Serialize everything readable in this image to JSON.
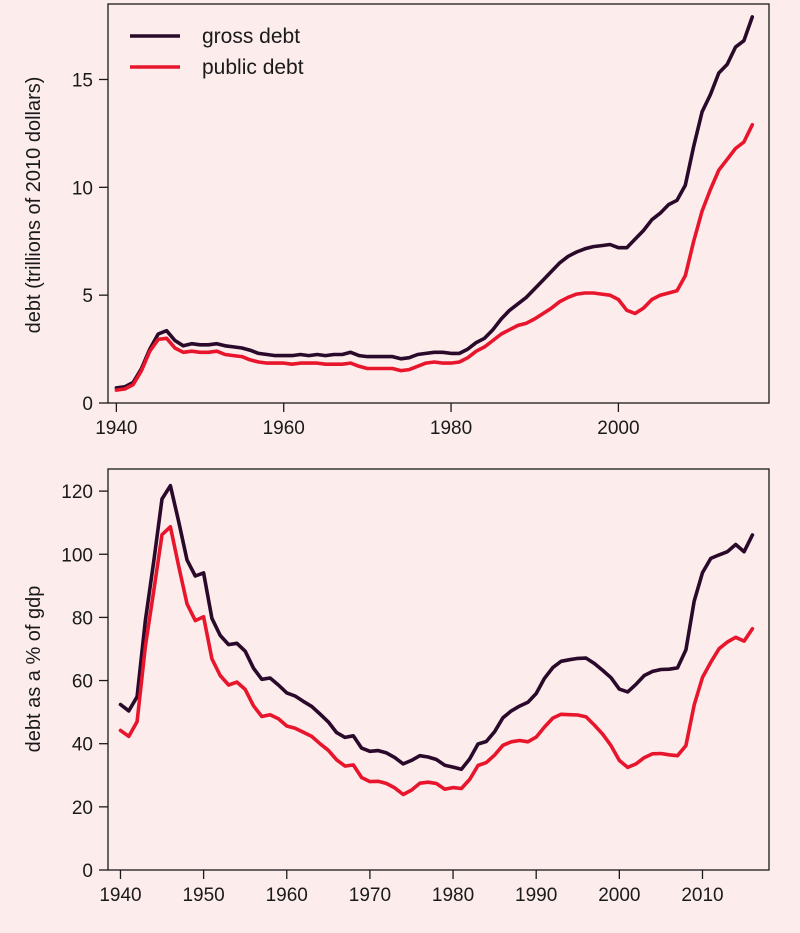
{
  "colors": {
    "background": "#fdecec",
    "gross": "#2a0a2a",
    "public": "#e8162c"
  },
  "chart_data": [
    {
      "type": "line",
      "title": "",
      "xlabel": "",
      "ylabel": "debt (trillions of 2010 dollars)",
      "xlim": [
        1939,
        2018
      ],
      "ylim": [
        0,
        18.5
      ],
      "xticks": [
        1940,
        1960,
        1980,
        2000
      ],
      "yticks": [
        0,
        5,
        10,
        15
      ],
      "legend": "top-left",
      "legend_entries": [
        "gross debt",
        "public debt"
      ],
      "series": [
        {
          "name": "gross debt",
          "x": [
            1940,
            1941,
            1942,
            1943,
            1944,
            1945,
            1946,
            1947,
            1948,
            1949,
            1950,
            1951,
            1952,
            1953,
            1954,
            1955,
            1956,
            1957,
            1958,
            1959,
            1960,
            1961,
            1962,
            1963,
            1964,
            1965,
            1966,
            1967,
            1968,
            1969,
            1970,
            1971,
            1972,
            1973,
            1974,
            1975,
            1976,
            1977,
            1978,
            1979,
            1980,
            1981,
            1982,
            1983,
            1984,
            1985,
            1986,
            1987,
            1988,
            1989,
            1990,
            1991,
            1992,
            1993,
            1994,
            1995,
            1996,
            1997,
            1998,
            1999,
            2000,
            2001,
            2002,
            2003,
            2004,
            2005,
            2006,
            2007,
            2008,
            2009,
            2010,
            2011,
            2012,
            2013,
            2014,
            2015,
            2016
          ],
          "values": [
            0.7,
            0.75,
            0.95,
            1.6,
            2.5,
            3.2,
            3.35,
            2.9,
            2.65,
            2.75,
            2.7,
            2.7,
            2.75,
            2.65,
            2.6,
            2.55,
            2.45,
            2.3,
            2.25,
            2.2,
            2.2,
            2.2,
            2.25,
            2.2,
            2.25,
            2.2,
            2.25,
            2.25,
            2.35,
            2.2,
            2.15,
            2.15,
            2.15,
            2.15,
            2.05,
            2.1,
            2.25,
            2.3,
            2.35,
            2.35,
            2.3,
            2.3,
            2.5,
            2.8,
            3.0,
            3.4,
            3.9,
            4.3,
            4.6,
            4.9,
            5.3,
            5.7,
            6.1,
            6.5,
            6.8,
            7.0,
            7.15,
            7.25,
            7.3,
            7.35,
            7.2,
            7.2,
            7.6,
            8.0,
            8.5,
            8.8,
            9.2,
            9.4,
            10.1,
            11.9,
            13.5,
            14.3,
            15.3,
            15.7,
            16.5,
            16.8,
            17.9
          ]
        },
        {
          "name": "public debt",
          "x": [
            1940,
            1941,
            1942,
            1943,
            1944,
            1945,
            1946,
            1947,
            1948,
            1949,
            1950,
            1951,
            1952,
            1953,
            1954,
            1955,
            1956,
            1957,
            1958,
            1959,
            1960,
            1961,
            1962,
            1963,
            1964,
            1965,
            1966,
            1967,
            1968,
            1969,
            1970,
            1971,
            1972,
            1973,
            1974,
            1975,
            1976,
            1977,
            1978,
            1979,
            1980,
            1981,
            1982,
            1983,
            1984,
            1985,
            1986,
            1987,
            1988,
            1989,
            1990,
            1991,
            1992,
            1993,
            1994,
            1995,
            1996,
            1997,
            1998,
            1999,
            2000,
            2001,
            2002,
            2003,
            2004,
            2005,
            2006,
            2007,
            2008,
            2009,
            2010,
            2011,
            2012,
            2013,
            2014,
            2015,
            2016
          ],
          "values": [
            0.6,
            0.65,
            0.85,
            1.5,
            2.4,
            2.95,
            3.0,
            2.55,
            2.35,
            2.4,
            2.35,
            2.35,
            2.4,
            2.25,
            2.2,
            2.15,
            2.0,
            1.9,
            1.85,
            1.85,
            1.85,
            1.8,
            1.85,
            1.85,
            1.85,
            1.8,
            1.8,
            1.8,
            1.85,
            1.7,
            1.6,
            1.6,
            1.6,
            1.6,
            1.5,
            1.55,
            1.7,
            1.85,
            1.9,
            1.85,
            1.85,
            1.9,
            2.1,
            2.4,
            2.6,
            2.9,
            3.2,
            3.4,
            3.6,
            3.7,
            3.9,
            4.15,
            4.4,
            4.7,
            4.9,
            5.05,
            5.1,
            5.1,
            5.05,
            5.0,
            4.8,
            4.3,
            4.15,
            4.4,
            4.8,
            5.0,
            5.1,
            5.2,
            5.9,
            7.5,
            8.9,
            9.9,
            10.8,
            11.3,
            11.8,
            12.1,
            12.9
          ]
        }
      ]
    },
    {
      "type": "line",
      "title": "",
      "xlabel": "",
      "ylabel": "debt as a % of gdp",
      "xlim": [
        1938.5,
        2018
      ],
      "ylim": [
        0,
        127
      ],
      "xticks": [
        1940,
        1950,
        1960,
        1970,
        1980,
        1990,
        2000,
        2010
      ],
      "yticks": [
        0,
        20,
        40,
        60,
        80,
        100,
        120
      ],
      "legend": "none",
      "series": [
        {
          "name": "gross debt",
          "x": [
            1940,
            1941,
            1942,
            1943,
            1944,
            1945,
            1946,
            1947,
            1948,
            1949,
            1950,
            1951,
            1952,
            1953,
            1954,
            1955,
            1956,
            1957,
            1958,
            1959,
            1960,
            1961,
            1962,
            1963,
            1964,
            1965,
            1966,
            1967,
            1968,
            1969,
            1970,
            1971,
            1972,
            1973,
            1974,
            1975,
            1976,
            1977,
            1978,
            1979,
            1980,
            1981,
            1982,
            1983,
            1984,
            1985,
            1986,
            1987,
            1988,
            1989,
            1990,
            1991,
            1992,
            1993,
            1994,
            1995,
            1996,
            1997,
            1998,
            1999,
            2000,
            2001,
            2002,
            2003,
            2004,
            2005,
            2006,
            2007,
            2008,
            2009,
            2010,
            2011,
            2012,
            2013,
            2014,
            2015,
            2016
          ],
          "values": [
            52.4,
            50.4,
            54.9,
            79.1,
            97.6,
            117.5,
            121.7,
            110.3,
            98.2,
            93.1,
            94.1,
            79.7,
            74.3,
            71.4,
            71.8,
            69.3,
            63.9,
            60.4,
            60.8,
            58.6,
            56.1,
            55.1,
            53.4,
            51.8,
            49.4,
            46.9,
            43.5,
            42.0,
            42.5,
            38.6,
            37.6,
            37.8,
            37.1,
            35.6,
            33.6,
            34.7,
            36.2,
            35.8,
            35.0,
            33.2,
            32.6,
            31.9,
            35.2,
            39.9,
            40.7,
            43.8,
            48.2,
            50.4,
            51.9,
            53.1,
            55.9,
            60.7,
            64.1,
            66.1,
            66.6,
            67.0,
            67.1,
            65.4,
            63.2,
            60.9,
            57.3,
            56.4,
            58.8,
            61.6,
            62.9,
            63.5,
            63.6,
            64.0,
            69.7,
            85.2,
            94.2,
            98.7,
            99.8,
            100.8,
            103.1,
            100.8,
            106.1
          ]
        },
        {
          "name": "public debt",
          "x": [
            1940,
            1941,
            1942,
            1943,
            1944,
            1945,
            1946,
            1947,
            1948,
            1949,
            1950,
            1951,
            1952,
            1953,
            1954,
            1955,
            1956,
            1957,
            1958,
            1959,
            1960,
            1961,
            1962,
            1963,
            1964,
            1965,
            1966,
            1967,
            1968,
            1969,
            1970,
            1971,
            1972,
            1973,
            1974,
            1975,
            1976,
            1977,
            1978,
            1979,
            1980,
            1981,
            1982,
            1983,
            1984,
            1985,
            1986,
            1987,
            1988,
            1989,
            1990,
            1991,
            1992,
            1993,
            1994,
            1995,
            1996,
            1997,
            1998,
            1999,
            2000,
            2001,
            2002,
            2003,
            2004,
            2005,
            2006,
            2007,
            2008,
            2009,
            2010,
            2011,
            2012,
            2013,
            2014,
            2015,
            2016
          ],
          "values": [
            44.2,
            42.3,
            47.0,
            70.9,
            88.3,
            106.2,
            108.7,
            96.2,
            84.3,
            79.0,
            80.2,
            66.9,
            61.6,
            58.6,
            59.5,
            57.2,
            52.0,
            48.6,
            49.2,
            47.9,
            45.6,
            44.9,
            43.6,
            42.3,
            40.0,
            37.9,
            34.9,
            32.9,
            33.3,
            29.3,
            28.0,
            28.1,
            27.4,
            26.0,
            23.9,
            25.3,
            27.5,
            27.8,
            27.4,
            25.6,
            26.1,
            25.8,
            28.7,
            33.1,
            34.0,
            36.4,
            39.5,
            40.6,
            41.0,
            40.6,
            42.1,
            45.3,
            48.1,
            49.3,
            49.2,
            49.1,
            48.5,
            45.9,
            43.0,
            39.4,
            34.7,
            32.5,
            33.6,
            35.6,
            36.8,
            36.9,
            36.5,
            36.2,
            39.4,
            52.3,
            61.0,
            65.8,
            70.1,
            72.2,
            73.7,
            72.5,
            76.4
          ]
        }
      ]
    }
  ]
}
